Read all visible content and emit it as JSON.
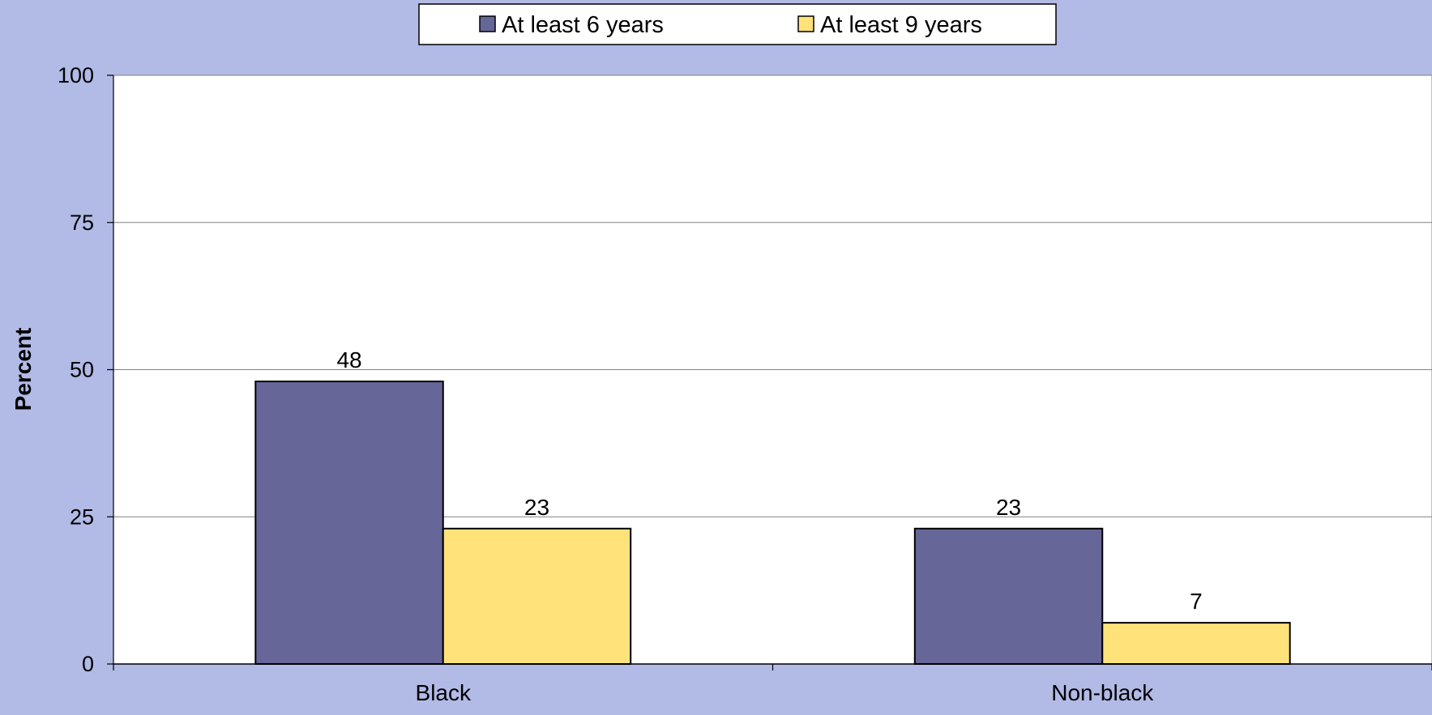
{
  "chart_data": {
    "type": "bar",
    "categories": [
      "Black",
      "Non-black"
    ],
    "series": [
      {
        "name": "At least 6 years",
        "values": [
          48,
          23
        ]
      },
      {
        "name": "At least 9 years",
        "values": [
          23,
          7
        ]
      }
    ],
    "data_labels": [
      [
        "48",
        "23"
      ],
      [
        "23",
        "7"
      ]
    ],
    "ylabel": "Percent",
    "ylim": [
      0,
      100
    ],
    "yticks": [
      0,
      25,
      50,
      75,
      100
    ],
    "grid": true,
    "legend_position": "top",
    "colors": {
      "series": [
        "#666699",
        "#ffe37a"
      ],
      "background": "#b2bae6",
      "plot_area": "#ffffff"
    }
  }
}
